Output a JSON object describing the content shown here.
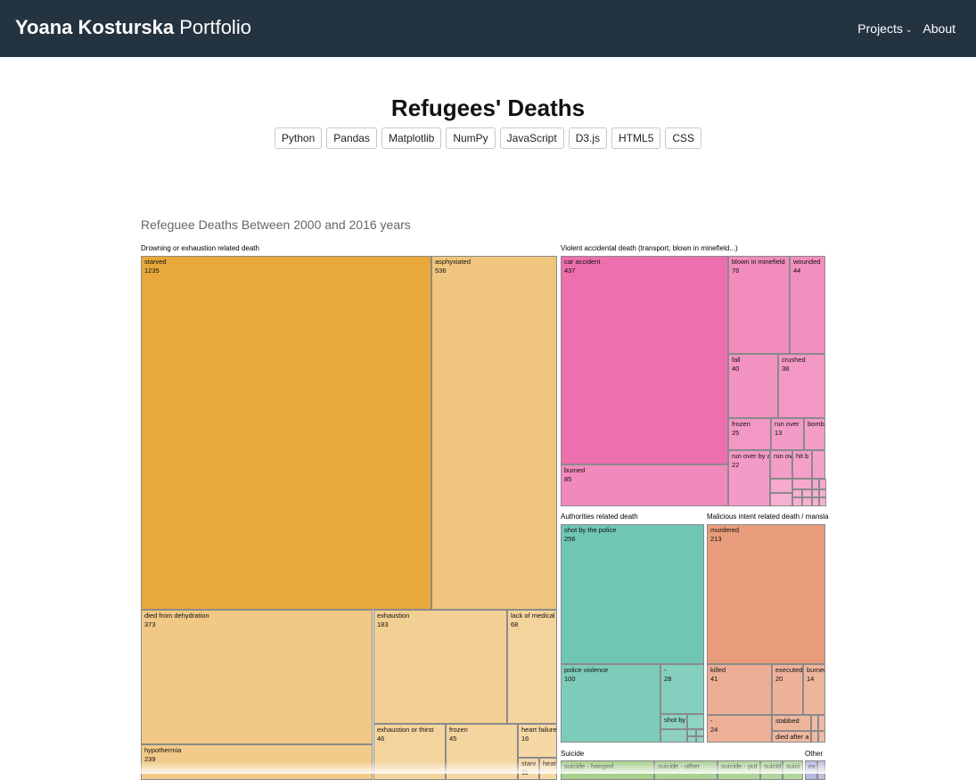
{
  "nav": {
    "brand_bold": "Yoana Kosturska",
    "brand_light": "Portfolio",
    "projects": "Projects",
    "about": "About"
  },
  "page": {
    "title": "Refugees' Deaths",
    "tags": [
      "Python",
      "Pandas",
      "Matplotlib",
      "NumPy",
      "JavaScript",
      "D3.js",
      "HTML5",
      "CSS"
    ]
  },
  "chart_data": {
    "type": "treemap",
    "title": "Refeguee Deaths Between 2000 and 2016 years",
    "groups": [
      {
        "name": "Drowning or exhaustion related death",
        "color": "#e8a83a",
        "children": [
          {
            "name": "starved",
            "value": 1235
          },
          {
            "name": "asphyxiated",
            "value": 536
          },
          {
            "name": "died from dehydration",
            "value": 373
          },
          {
            "name": "exhaustion",
            "value": 183
          },
          {
            "name": "lack of medical",
            "value": 68
          },
          {
            "name": "hypothermia",
            "value": 239
          },
          {
            "name": "exhaustion or thirst",
            "value": 46
          },
          {
            "name": "frozen",
            "value": 45
          },
          {
            "name": "heart failure",
            "value": 16
          },
          {
            "name": "starv",
            "value": 11
          },
          {
            "name": "heat",
            "value": null
          }
        ]
      },
      {
        "name": "Violent accidental death (transport, blown in minefield...)",
        "color": "#ee6fad",
        "children": [
          {
            "name": "car accident",
            "value": 437
          },
          {
            "name": "blown in minefield",
            "value": 76
          },
          {
            "name": "wounded",
            "value": 44
          },
          {
            "name": "fall",
            "value": 40
          },
          {
            "name": "crushed",
            "value": 38
          },
          {
            "name": "burned",
            "value": 85
          },
          {
            "name": "frozen",
            "value": 25
          },
          {
            "name": "run over",
            "value": 13
          },
          {
            "name": "bomb",
            "value": null
          },
          {
            "name": "run over by a",
            "value": 22
          },
          {
            "name": "run ov",
            "value": null
          },
          {
            "name": "hit b",
            "value": null
          }
        ]
      },
      {
        "name": "Authorities related death",
        "color": "#6fc6b2",
        "children": [
          {
            "name": "shot by the police",
            "value": 256
          },
          {
            "name": "police violence",
            "value": 100
          },
          {
            "name": "-",
            "value": 28
          },
          {
            "name": "shot by",
            "value": null
          }
        ]
      },
      {
        "name": "Malicious intent related death / mansla",
        "color": "#e89c7c",
        "children": [
          {
            "name": "murdered",
            "value": 213
          },
          {
            "name": "killed",
            "value": 41
          },
          {
            "name": "executed",
            "value": 20
          },
          {
            "name": "burned",
            "value": 14
          },
          {
            "name": "-",
            "value": 24
          },
          {
            "name": "stabbed",
            "value": null
          },
          {
            "name": "died after a",
            "value": null
          }
        ]
      },
      {
        "name": "Suicide",
        "color": "#a6cf8e",
        "children": [
          {
            "name": "suicide - hanged",
            "value": null
          },
          {
            "name": "suicide - other",
            "value": null
          },
          {
            "name": "suicide - put",
            "value": null
          },
          {
            "name": "suicid",
            "value": null
          },
          {
            "name": "suici",
            "value": null
          }
        ]
      },
      {
        "name": "Other",
        "color": "#b7b7dc",
        "children": [
          {
            "name": "ex",
            "value": null
          }
        ]
      }
    ]
  }
}
